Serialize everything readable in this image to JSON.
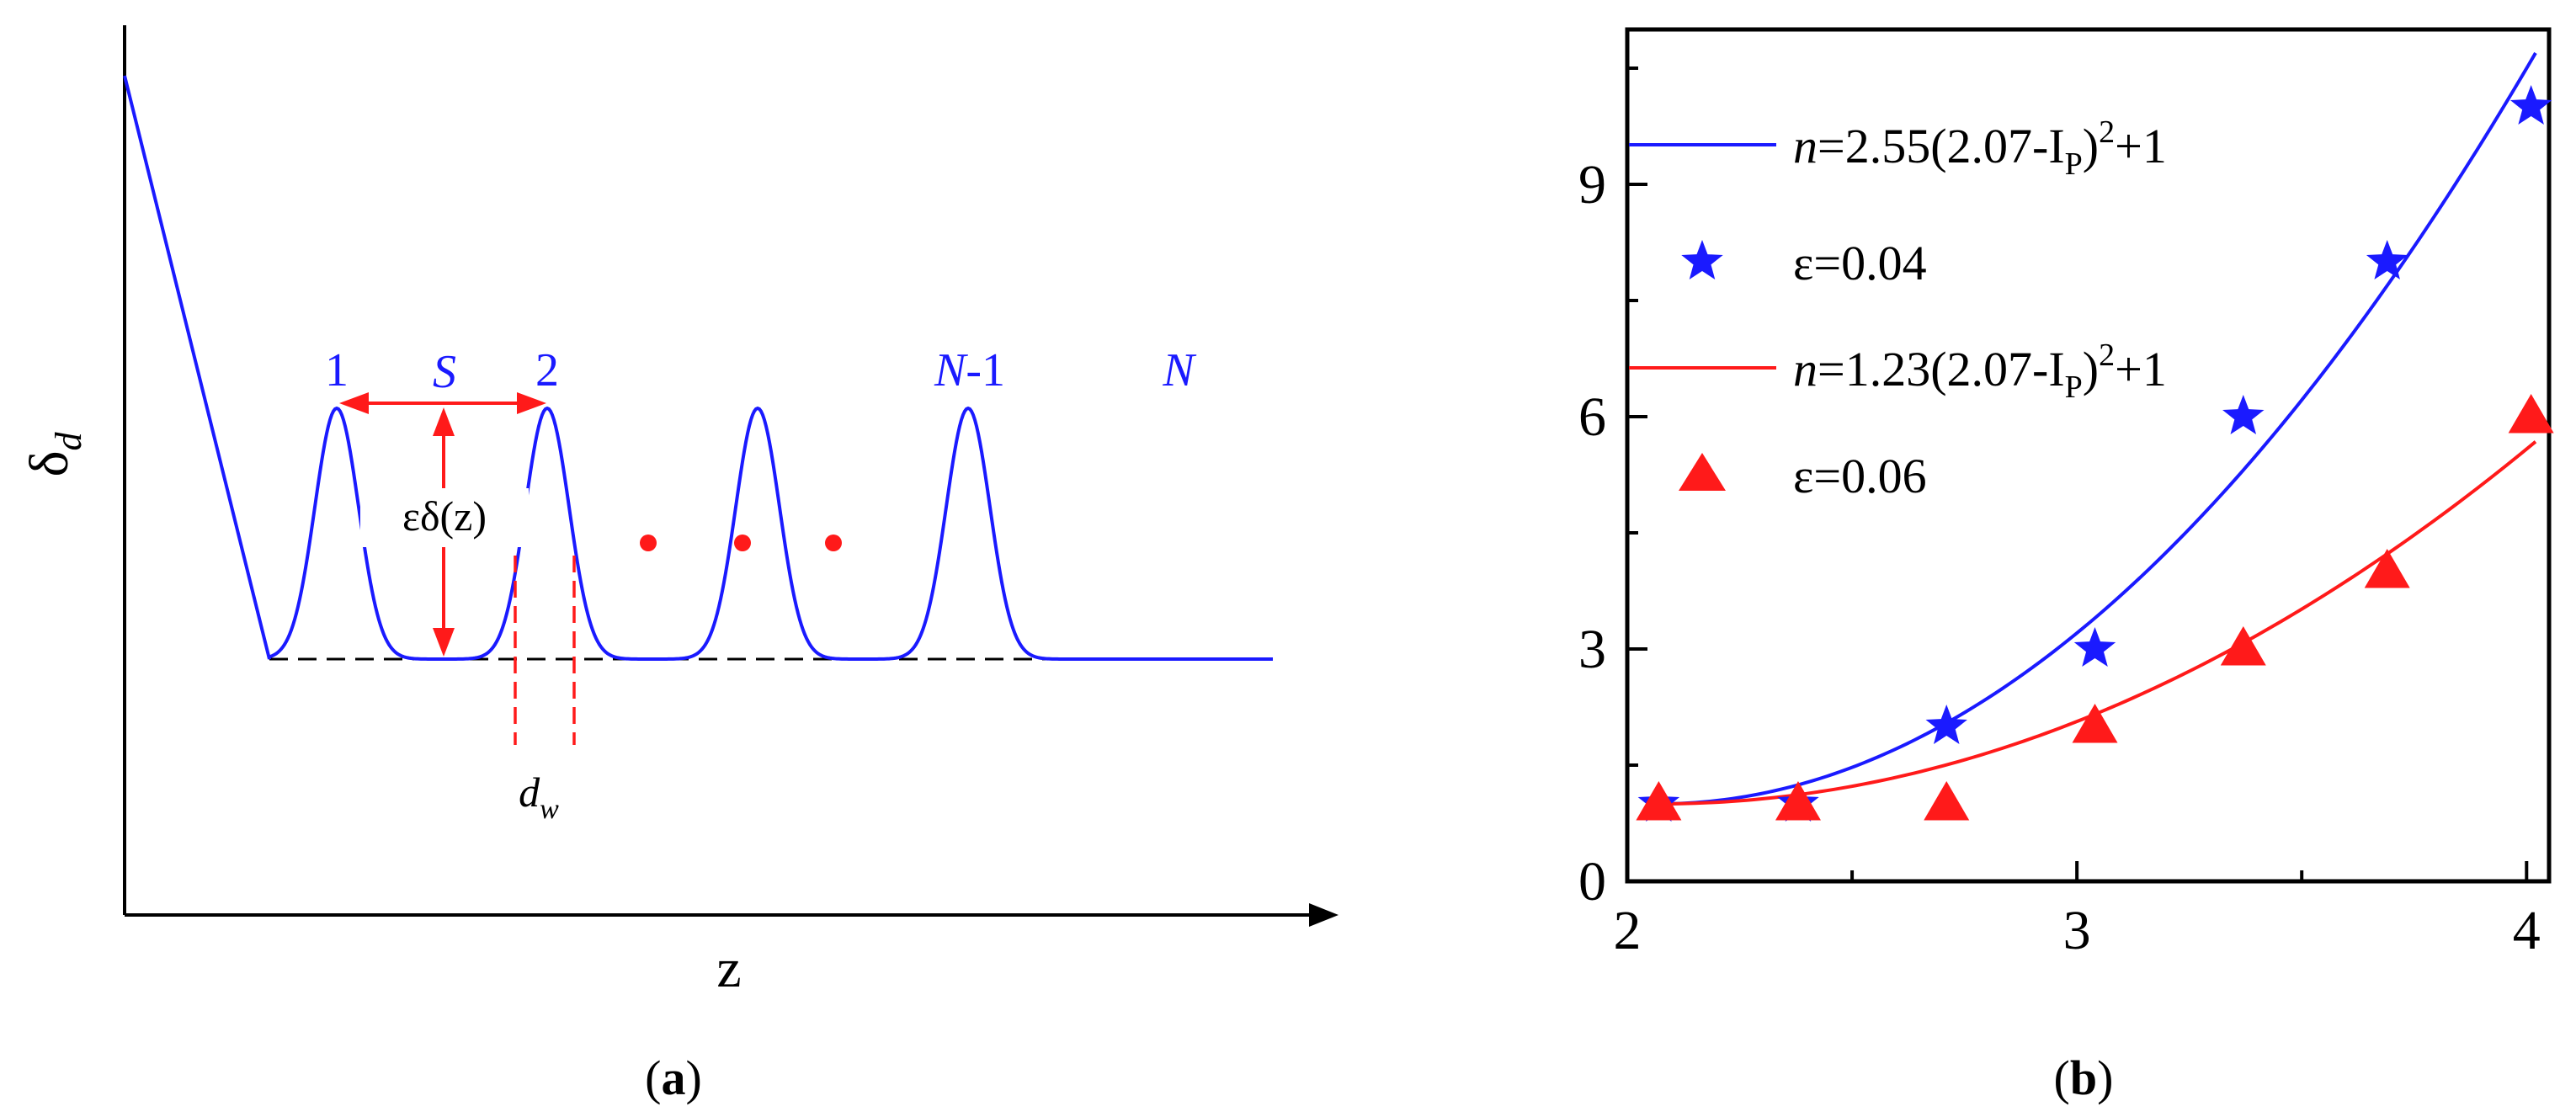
{
  "colors": {
    "blue": "#1a1aff",
    "red": "#ff1a1a",
    "black": "#000000"
  },
  "panel_a": {
    "caption_open": "(",
    "caption_letter": "a",
    "caption_close": ")",
    "ylabel_main": "δ",
    "ylabel_sub": "d",
    "xlabel": "z",
    "peak_1": "1",
    "peak_2": "2",
    "peak_n1_italic": "N",
    "peak_n1_rest": "-1",
    "peak_n": "N",
    "spacing_label": "S",
    "height_label": "εδ(z)",
    "width_main": "d",
    "width_sub": "w",
    "peak_positions_z": [
      1.0,
      2.0,
      3.0,
      4.0
    ],
    "ellipsis_dots": 3
  },
  "chart_data": {
    "type": "scatter",
    "caption_open": "(",
    "caption_letter": "b",
    "caption_close": ")",
    "xlim": [
      2.0,
      4.05
    ],
    "ylim": [
      0,
      11
    ],
    "xticks": [
      2,
      3,
      4
    ],
    "xtick_labels": [
      "2",
      "3",
      "4"
    ],
    "yticks": [
      0,
      3,
      6,
      9
    ],
    "ytick_labels": [
      "0",
      "3",
      "6",
      "9"
    ],
    "xlabel": "",
    "ylabel": "",
    "legend": {
      "position": "top-left",
      "entries": [
        {
          "kind": "line",
          "color": "blue",
          "n": "n",
          "formula": "=2.55(2.07-I",
          "sub": "P",
          "tail": ")",
          "sup": "2",
          "end": "+1"
        },
        {
          "kind": "star",
          "color": "blue",
          "text": "ε=0.04"
        },
        {
          "kind": "line",
          "color": "red",
          "n": "n",
          "formula": "=1.23(2.07-I",
          "sub": "P",
          "tail": ")",
          "sup": "2",
          "end": "+1"
        },
        {
          "kind": "triangle",
          "color": "red",
          "text": "ε=0.06"
        }
      ]
    },
    "series": [
      {
        "name": "ε=0.04",
        "marker": "star",
        "color": "blue",
        "x": [
          2.07,
          2.38,
          2.71,
          3.04,
          3.37,
          3.69,
          4.01
        ],
        "y": [
          1,
          1,
          2,
          3,
          6,
          8,
          10
        ]
      },
      {
        "name": "ε=0.06",
        "marker": "triangle",
        "color": "red",
        "x": [
          2.07,
          2.38,
          2.71,
          3.04,
          3.37,
          3.69,
          4.01
        ],
        "y": [
          1,
          1,
          1,
          2,
          3,
          4,
          6
        ]
      }
    ],
    "fits": [
      {
        "name": "n=2.55(2.07-Ip)^2+1",
        "color": "blue",
        "a": 2.55,
        "b": 2.07,
        "c": 1,
        "x_range": [
          2.07,
          4.02
        ]
      },
      {
        "name": "n=1.23(2.07-Ip)^2+1",
        "color": "red",
        "a": 1.23,
        "b": 2.07,
        "c": 1,
        "x_range": [
          2.07,
          4.02
        ]
      }
    ]
  }
}
